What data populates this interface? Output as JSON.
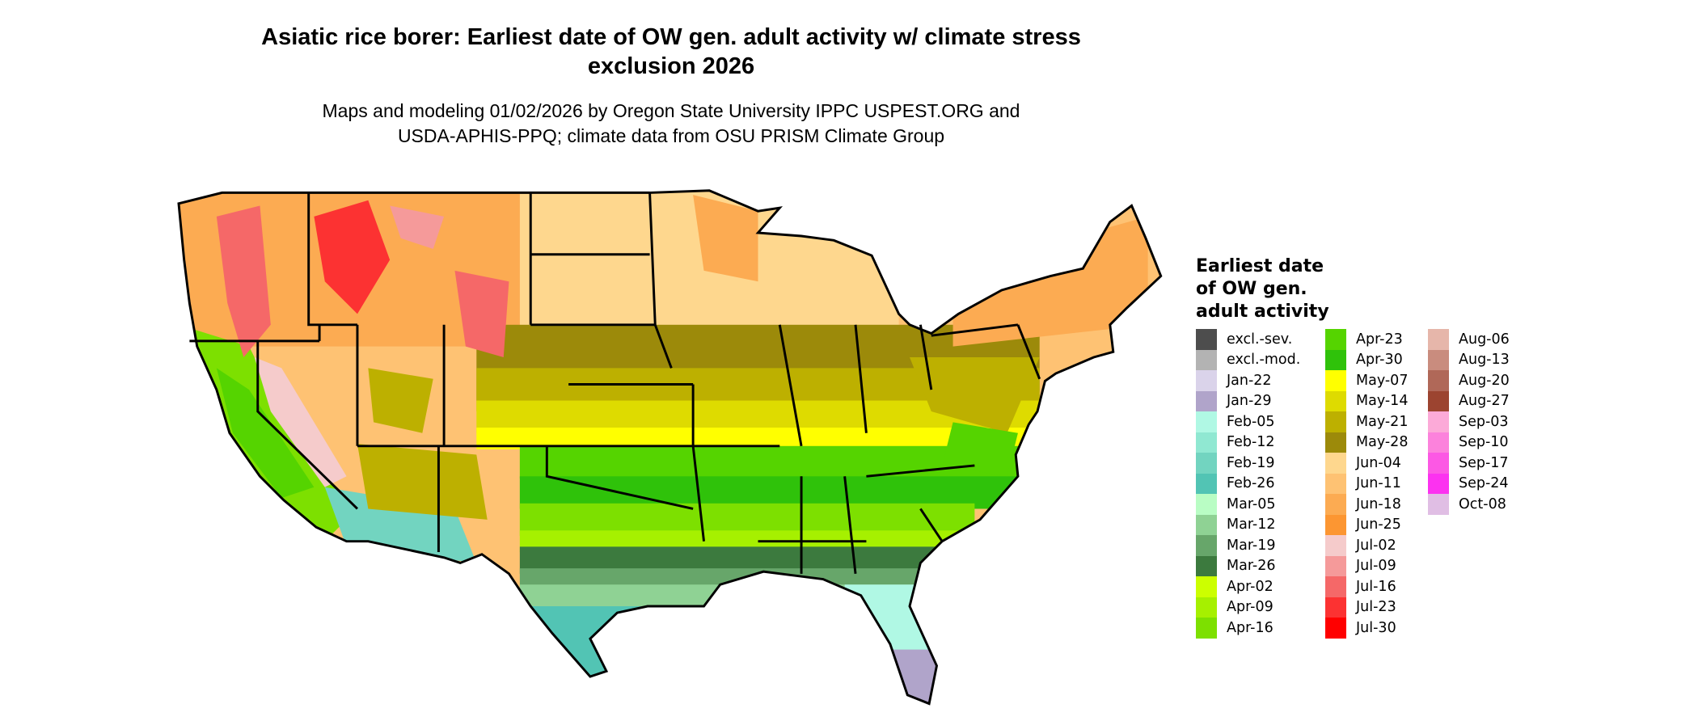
{
  "title": "Asiatic rice borer: Earliest date of OW gen. adult activity w/ climate stress exclusion 2026",
  "subtitle_line1": "Maps and modeling 01/02/2026 by Oregon State University IPPC USPEST.ORG and",
  "subtitle_line2": "USDA-APHIS-PPQ; climate data from OSU PRISM Climate Group",
  "legend": {
    "title_lines": [
      "Earliest date",
      "of OW gen.",
      "adult activity"
    ],
    "columns": [
      [
        {
          "label": "excl.-sev.",
          "color": "#4d4d4d"
        },
        {
          "label": "excl.-mod.",
          "color": "#b3b3b3"
        },
        {
          "label": "Jan-22",
          "color": "#dad3ea"
        },
        {
          "label": "Jan-29",
          "color": "#b0a4ca"
        },
        {
          "label": "Feb-05",
          "color": "#b0f8e4"
        },
        {
          "label": "Feb-12",
          "color": "#90e8d2"
        },
        {
          "label": "Feb-19",
          "color": "#72d4c0"
        },
        {
          "label": "Feb-26",
          "color": "#52c4b4"
        },
        {
          "label": "Mar-05",
          "color": "#b9fdc4"
        },
        {
          "label": "Mar-12",
          "color": "#8fd294"
        },
        {
          "label": "Mar-19",
          "color": "#67a66a"
        },
        {
          "label": "Mar-26",
          "color": "#3c7a3e"
        },
        {
          "label": "Apr-02",
          "color": "#ccff00"
        },
        {
          "label": "Apr-09",
          "color": "#a6f000"
        },
        {
          "label": "Apr-16",
          "color": "#7de000"
        }
      ],
      [
        {
          "label": "Apr-23",
          "color": "#55d400"
        },
        {
          "label": "Apr-30",
          "color": "#2fc20a"
        },
        {
          "label": "May-07",
          "color": "#ffff00"
        },
        {
          "label": "May-14",
          "color": "#dedb00"
        },
        {
          "label": "May-21",
          "color": "#bdb000"
        },
        {
          "label": "May-28",
          "color": "#9c8a0a"
        },
        {
          "label": "Jun-04",
          "color": "#fed78e"
        },
        {
          "label": "Jun-11",
          "color": "#fec273"
        },
        {
          "label": "Jun-18",
          "color": "#fcab52"
        },
        {
          "label": "Jun-25",
          "color": "#fc9632"
        },
        {
          "label": "Jul-02",
          "color": "#f5cbcb"
        },
        {
          "label": "Jul-09",
          "color": "#f59a9a"
        },
        {
          "label": "Jul-16",
          "color": "#f56868"
        },
        {
          "label": "Jul-23",
          "color": "#fc3232"
        },
        {
          "label": "Jul-30",
          "color": "#ff0000"
        }
      ],
      [
        {
          "label": "Aug-06",
          "color": "#e6b6aa"
        },
        {
          "label": "Aug-13",
          "color": "#c98c7e"
        },
        {
          "label": "Aug-20",
          "color": "#b06858"
        },
        {
          "label": "Aug-27",
          "color": "#9c4430"
        },
        {
          "label": "Sep-03",
          "color": "#fcaad8"
        },
        {
          "label": "Sep-10",
          "color": "#fc82dc"
        },
        {
          "label": "Sep-17",
          "color": "#fc58e4"
        },
        {
          "label": "Sep-24",
          "color": "#fc32f0"
        },
        {
          "label": "Oct-08",
          "color": "#e0bee4"
        }
      ]
    ]
  }
}
